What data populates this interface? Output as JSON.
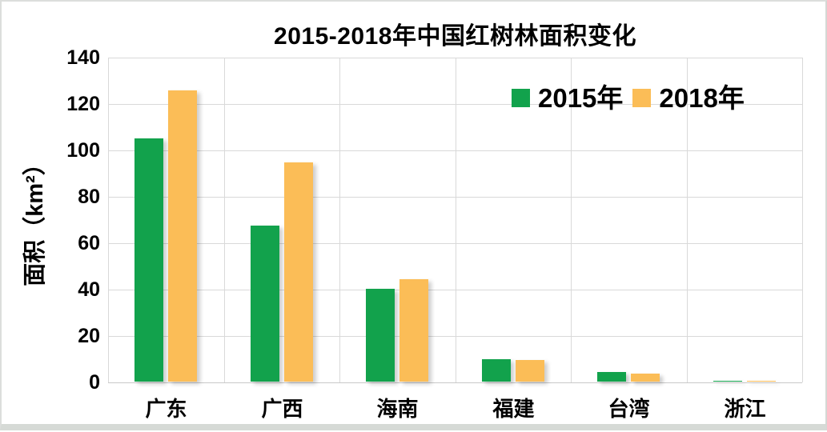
{
  "title": "2015-2018年中国红树林面积变化",
  "colors": {
    "series_2015": "#12A24C",
    "series_2018": "#FBBD57",
    "gridline": "#D9D9D9",
    "text": "#000000",
    "frame_border": "#D6DAD6"
  },
  "chart_data": {
    "type": "bar",
    "title": "2015-2018年中国红树林面积变化",
    "xlabel": "",
    "ylabel": "面积（km²）",
    "categories": [
      "广东",
      "广西",
      "海南",
      "福建",
      "台湾",
      "浙江"
    ],
    "series": [
      {
        "name": "2015年",
        "color": "#12A24C",
        "values": [
          105,
          67.3,
          40,
          9.5,
          4,
          0.2
        ]
      },
      {
        "name": "2018年",
        "color": "#FBBD57",
        "values": [
          125.5,
          94.5,
          44,
          9.2,
          3.3,
          0.5
        ]
      }
    ],
    "ylim": [
      0,
      140
    ],
    "yticks": [
      0,
      20,
      40,
      60,
      80,
      100,
      120,
      140
    ],
    "grid": true,
    "legend_position": "top-right-inside"
  }
}
